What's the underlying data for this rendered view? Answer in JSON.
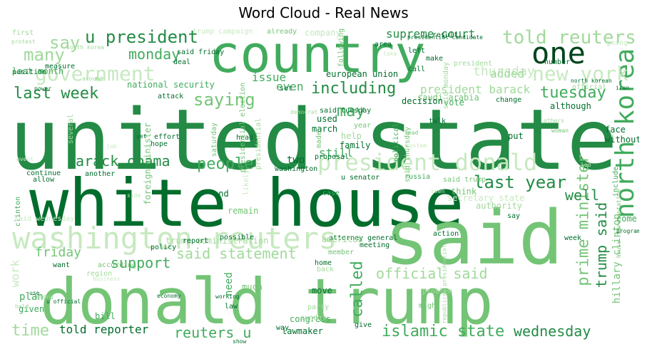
{
  "figure": {
    "title": "Word Cloud - Real News"
  },
  "palette": {
    "darkest": "#00441b",
    "dark": "#006d2c",
    "mid_dark": "#238b45",
    "mid": "#41ab5d",
    "light": "#74c476",
    "lighter": "#a1d99b",
    "pale": "#c7e9c0",
    "palest": "#e5f5e0"
  },
  "words": [
    {
      "text": "united state",
      "color": "#238b45"
    },
    {
      "text": "white house",
      "color": "#006d2c"
    },
    {
      "text": "donald trump",
      "color": "#74c476"
    },
    {
      "text": "said",
      "color": "#74c476"
    },
    {
      "text": "country",
      "color": "#41ab5d"
    },
    {
      "text": "washington reuters",
      "color": "#c7e9c0"
    },
    {
      "text": "president donald",
      "color": "#c7e9c0"
    },
    {
      "text": "one",
      "color": "#00441b"
    },
    {
      "text": "north korea",
      "color": "#41ab5d"
    },
    {
      "text": "told reuters",
      "color": "#a1d99b"
    },
    {
      "text": "new york",
      "color": "#c7e9c0"
    },
    {
      "text": "u president",
      "color": "#238b45"
    },
    {
      "text": "government",
      "color": "#c7e9c0"
    },
    {
      "text": "last week",
      "color": "#238b45"
    },
    {
      "text": "including",
      "color": "#238b45"
    },
    {
      "text": "monday",
      "color": "#41ab5d"
    },
    {
      "text": "many",
      "color": "#a1d99b"
    },
    {
      "text": "say",
      "color": "#a1d99b"
    },
    {
      "text": "saying",
      "color": "#74c476"
    },
    {
      "text": "tuesday",
      "color": "#41ab5d"
    },
    {
      "text": "may",
      "color": "#41ab5d"
    },
    {
      "text": "barack obama",
      "color": "#238b45"
    },
    {
      "text": "people",
      "color": "#41ab5d"
    },
    {
      "text": "last year",
      "color": "#238b45"
    },
    {
      "text": "prime minister",
      "color": "#74c476"
    },
    {
      "text": "trump said",
      "color": "#238b45"
    },
    {
      "text": "well",
      "color": "#238b45"
    },
    {
      "text": "said statement",
      "color": "#a1d99b"
    },
    {
      "text": "support",
      "color": "#41ab5d"
    },
    {
      "text": "friday",
      "color": "#74c476"
    },
    {
      "text": "official said",
      "color": "#a1d99b"
    },
    {
      "text": "called",
      "color": "#41ab5d"
    },
    {
      "text": "islamic state",
      "color": "#41ab5d"
    },
    {
      "text": "reuters u",
      "color": "#41ab5d"
    },
    {
      "text": "time",
      "color": "#a1d99b"
    },
    {
      "text": "told reporter",
      "color": "#006d2c"
    },
    {
      "text": "wednesday",
      "color": "#238b45"
    },
    {
      "text": "hillary clinton",
      "color": "#74c476"
    },
    {
      "text": "thursday",
      "color": "#c7e9c0"
    },
    {
      "text": "added",
      "color": "#a1d99b"
    },
    {
      "text": "president barack",
      "color": "#a1d99b"
    },
    {
      "text": "supreme court",
      "color": "#238b45"
    },
    {
      "text": "issue",
      "color": "#41ab5d"
    },
    {
      "text": "even",
      "color": "#41ab5d"
    },
    {
      "text": "european union",
      "color": "#006d2c"
    },
    {
      "text": "last month",
      "color": "#41ab5d"
    },
    {
      "text": "national security",
      "color": "#41ab5d"
    },
    {
      "text": "saudi arabia",
      "color": "#74c476"
    },
    {
      "text": "vote",
      "color": "#41ab5d"
    },
    {
      "text": "decision",
      "color": "#006d2c"
    },
    {
      "text": "still",
      "color": "#41ab5d"
    },
    {
      "text": "plan",
      "color": "#41ab5d"
    },
    {
      "text": "given",
      "color": "#41ab5d"
    },
    {
      "text": "work",
      "color": "#c7e9c0"
    },
    {
      "text": "need",
      "color": "#41ab5d"
    },
    {
      "text": "law",
      "color": "#006d2c"
    },
    {
      "text": "congress",
      "color": "#41ab5d"
    },
    {
      "text": "lawmaker",
      "color": "#006d2c"
    },
    {
      "text": "way",
      "color": "#006d2c"
    },
    {
      "text": "much",
      "color": "#74c476"
    },
    {
      "text": "move",
      "color": "#006d2c"
    },
    {
      "text": "home",
      "color": "#006d2c"
    },
    {
      "text": "attorney general",
      "color": "#006d2c"
    },
    {
      "text": "member",
      "color": "#74c476"
    },
    {
      "text": "back",
      "color": "#a1d99b"
    },
    {
      "text": "meeting",
      "color": "#006d2c"
    },
    {
      "text": "american",
      "color": "#a1d99b"
    },
    {
      "text": "trump administration",
      "color": "#a1d99b"
    },
    {
      "text": "report",
      "color": "#006d2c"
    },
    {
      "text": "policy",
      "color": "#006d2c"
    },
    {
      "text": "bill",
      "color": "#41ab5d"
    },
    {
      "text": "according",
      "color": "#74c476"
    },
    {
      "text": "region",
      "color": "#a1d99b"
    },
    {
      "text": "want",
      "color": "#006d2c"
    },
    {
      "text": "remain",
      "color": "#74c476"
    },
    {
      "text": "end",
      "color": "#006d2c"
    },
    {
      "text": "case",
      "color": "#41ab5d"
    },
    {
      "text": "two",
      "color": "#006d2c"
    },
    {
      "text": "proposal",
      "color": "#006d2c"
    },
    {
      "text": "washington",
      "color": "#006d2c"
    },
    {
      "text": "u senator",
      "color": "#006d2c"
    },
    {
      "text": "russia",
      "color": "#41ab5d"
    },
    {
      "text": "allow",
      "color": "#006d2c"
    },
    {
      "text": "another",
      "color": "#006d2c"
    },
    {
      "text": "continue",
      "color": "#006d2c"
    },
    {
      "text": "clinton",
      "color": "#41ab5d"
    },
    {
      "text": "hope",
      "color": "#006d2c"
    },
    {
      "text": "effort",
      "color": "#006d2c"
    },
    {
      "text": "head",
      "color": "#006d2c"
    },
    {
      "text": "used",
      "color": "#006d2c"
    },
    {
      "text": "march",
      "color": "#006d2c"
    },
    {
      "text": "family",
      "color": "#006d2c"
    },
    {
      "text": "help",
      "color": "#a1d99b"
    },
    {
      "text": "year",
      "color": "#74c476"
    },
    {
      "text": "said tuesday",
      "color": "#006d2c"
    },
    {
      "text": "talk",
      "color": "#006d2c"
    },
    {
      "text": "put",
      "color": "#006d2c"
    },
    {
      "text": "face",
      "color": "#006d2c"
    },
    {
      "text": "without",
      "color": "#006d2c"
    },
    {
      "text": "although",
      "color": "#006d2c"
    },
    {
      "text": "change",
      "color": "#006d2c"
    },
    {
      "text": "attack",
      "color": "#006d2c"
    },
    {
      "text": "deal",
      "color": "#006d2c"
    },
    {
      "text": "said friday",
      "color": "#006d2c"
    },
    {
      "text": "position",
      "color": "#006d2c"
    },
    {
      "text": "measure",
      "color": "#006d2c"
    },
    {
      "text": "first",
      "color": "#a1d99b"
    },
    {
      "text": "protest",
      "color": "#a1d99b"
    },
    {
      "text": "already",
      "color": "#74c476"
    },
    {
      "text": "company",
      "color": "#c7e9c0"
    },
    {
      "text": "trump campaign",
      "color": "#c7e9c0"
    },
    {
      "text": "area",
      "color": "#006d2c"
    },
    {
      "text": "left",
      "color": "#006d2c"
    },
    {
      "text": "call",
      "color": "#006d2c"
    },
    {
      "text": "make",
      "color": "#006d2c"
    },
    {
      "text": "result",
      "color": "#006d2c"
    },
    {
      "text": "number",
      "color": "#006d2c"
    },
    {
      "text": "think",
      "color": "#74c476"
    },
    {
      "text": "authority",
      "color": "#a1d99b"
    },
    {
      "text": "said trump",
      "color": "#74c476"
    },
    {
      "text": "secretary state",
      "color": "#c7e9c0"
    },
    {
      "text": "action",
      "color": "#006d2c"
    },
    {
      "text": "week",
      "color": "#006d2c"
    },
    {
      "text": "say",
      "color": "#006d2c"
    },
    {
      "text": "might",
      "color": "#74c476"
    },
    {
      "text": "problem",
      "color": "#a1d99b"
    },
    {
      "text": "party",
      "color": "#a1d99b"
    },
    {
      "text": "sunday",
      "color": "#a1d99b"
    },
    {
      "text": "give",
      "color": "#006d2c"
    },
    {
      "text": "following",
      "color": "#74c476"
    },
    {
      "text": "presidential election",
      "color": "#74c476"
    },
    {
      "text": "political",
      "color": "#41ab5d"
    },
    {
      "text": "said thursday",
      "color": "#74c476"
    },
    {
      "text": "foreign minister",
      "color": "#74c476"
    },
    {
      "text": "saturday",
      "color": "#74c476"
    },
    {
      "text": "several",
      "color": "#a1d99b"
    },
    {
      "text": "likely",
      "color": "#c7e9c0"
    },
    {
      "text": "made",
      "color": "#74c476"
    },
    {
      "text": "presidential",
      "color": "#a1d99b"
    },
    {
      "text": "set",
      "color": "#006d2c"
    },
    {
      "text": "include",
      "color": "#41ab5d"
    },
    {
      "text": "official",
      "color": "#a1d99b"
    },
    {
      "text": "others",
      "color": "#a1d99b"
    },
    {
      "text": "house representative",
      "color": "#74c476"
    },
    {
      "text": "president",
      "color": "#a1d99b"
    },
    {
      "text": "said monday",
      "color": "#a1d99b"
    },
    {
      "text": "said wednesday",
      "color": "#c7e9c0"
    },
    {
      "text": "possible",
      "color": "#006d2c"
    },
    {
      "text": "working",
      "color": "#006d2c"
    },
    {
      "text": "economy",
      "color": "#006d2c"
    },
    {
      "text": "among",
      "color": "#a1d99b"
    },
    {
      "text": "show",
      "color": "#006d2c"
    },
    {
      "text": "u official",
      "color": "#006d2c"
    },
    {
      "text": "far",
      "color": "#a1d99b"
    },
    {
      "text": "power",
      "color": "#006d2c"
    },
    {
      "text": "around",
      "color": "#a1d99b"
    },
    {
      "text": "south korea",
      "color": "#a1d99b"
    },
    {
      "text": "presidential candidate",
      "color": "#006d2c"
    },
    {
      "text": "north korean",
      "color": "#006d2c"
    },
    {
      "text": "iran",
      "color": "#006d2c"
    },
    {
      "text": "going",
      "color": "#c7e9c0"
    },
    {
      "text": "woman",
      "color": "#74c476"
    },
    {
      "text": "lead",
      "color": "#74c476"
    },
    {
      "text": "program",
      "color": "#006d2c"
    },
    {
      "text": "come",
      "color": "#41ab5d"
    },
    {
      "text": "use",
      "color": "#006d2c"
    },
    {
      "text": "held",
      "color": "#a1d99b"
    },
    {
      "text": "republican presidential",
      "color": "#a1d99b"
    },
    {
      "text": "system",
      "color": "#c7e9c0"
    },
    {
      "text": "led",
      "color": "#c7e9c0"
    },
    {
      "text": "seen",
      "color": "#c7e9c0"
    },
    {
      "text": "event",
      "color": "#c7e9c0"
    },
    {
      "text": "side",
      "color": "#c7e9c0"
    },
    {
      "text": "job",
      "color": "#c7e9c0"
    },
    {
      "text": "yet",
      "color": "#006d2c"
    },
    {
      "text": "democrat",
      "color": "#a1d99b"
    },
    {
      "text": "take",
      "color": "#c7e9c0"
    },
    {
      "text": "business",
      "color": "#c7e9c0"
    }
  ]
}
